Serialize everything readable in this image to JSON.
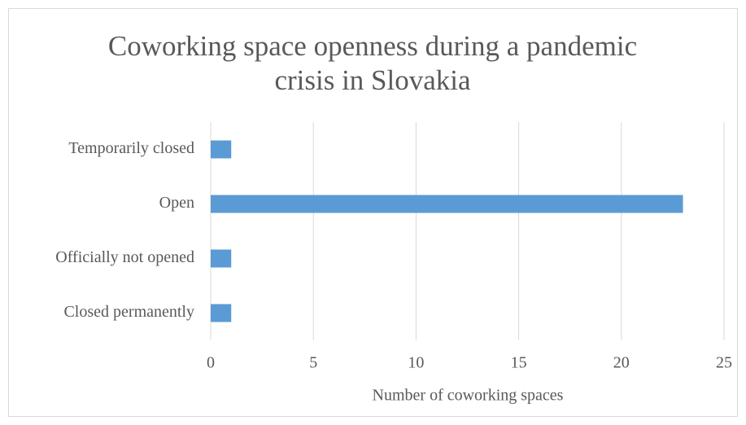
{
  "chart_data": {
    "type": "barh",
    "title": "Coworking space openness during a pandemic crisis in Slovakia",
    "categories": [
      "Temporarily closed",
      "Open",
      "Officially not opened",
      "Closed permanently"
    ],
    "values": [
      1,
      23,
      1,
      1
    ],
    "color": "#5b9bd5",
    "x_label": "Number of coworking spaces",
    "xlim": [
      0,
      25
    ],
    "xticks": [
      0,
      5,
      10,
      15,
      20,
      25
    ],
    "grid": true
  }
}
